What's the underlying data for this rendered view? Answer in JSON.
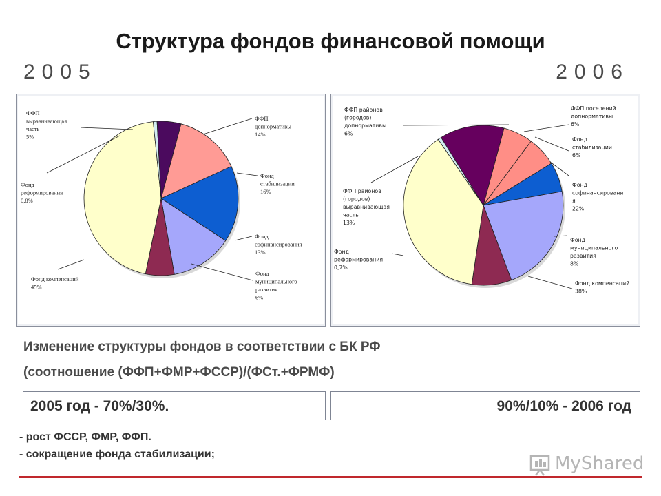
{
  "title": "Структура фондов финансовой помощи",
  "years": {
    "left": "2005",
    "right": "2006"
  },
  "chart_data": [
    {
      "type": "pie",
      "year": "2005",
      "slices": [
        {
          "label_lines": [
            "ФФП",
            "допнормативы",
            "14%"
          ],
          "value": 14,
          "color": "#ff9b95"
        },
        {
          "label_lines": [
            "Фонд",
            "стабилизации",
            "16%"
          ],
          "value": 16,
          "color": "#0d5ed1"
        },
        {
          "label_lines": [
            "Фонд",
            "софинансирования",
            "13%"
          ],
          "value": 13,
          "color": "#a5a7fb"
        },
        {
          "label_lines": [
            "Фонд",
            "муниципального",
            "развития",
            "6%"
          ],
          "value": 6,
          "color": "#8e2a52"
        },
        {
          "label_lines": [
            "Фонд компенсаций",
            "45%"
          ],
          "value": 45,
          "color": "#ffffcb"
        },
        {
          "label_lines": [
            "Фонд",
            "реформирования",
            "0,8%"
          ],
          "value": 0.8,
          "color": "#d3ecf2"
        },
        {
          "label_lines": [
            "ФФП",
            "выравнивающая",
            "часть",
            "5%"
          ],
          "value": 5,
          "color": "#4b0a5e"
        }
      ]
    },
    {
      "type": "pie",
      "year": "2006",
      "slices": [
        {
          "label_lines": [
            "ФФП районов",
            "(городов)",
            "допнормативы",
            "6%"
          ],
          "value": 6,
          "color": "#ff8e86"
        },
        {
          "label_lines": [
            "ФФП поселений",
            "допнормативы",
            "6%"
          ],
          "value": 6,
          "color": "#ff8e86"
        },
        {
          "label_lines": [
            "Фонд",
            "стабилизации",
            "6%"
          ],
          "value": 6,
          "color": "#0d5ed1"
        },
        {
          "label_lines": [
            "Фонд",
            "софинансировани",
            "я",
            "22%"
          ],
          "value": 22,
          "color": "#a5a7fb"
        },
        {
          "label_lines": [
            "Фонд",
            "муниципального",
            "развития",
            "8%"
          ],
          "value": 8,
          "color": "#8e2a52"
        },
        {
          "label_lines": [
            "Фонд компенсаций",
            "38%"
          ],
          "value": 38,
          "color": "#ffffcb"
        },
        {
          "label_lines": [
            "Фонд",
            "реформирования",
            "0,7%"
          ],
          "value": 0.7,
          "color": "#d3ecf2"
        },
        {
          "label_lines": [
            "ФФП районов",
            "(городов)",
            "выравнивающая",
            "часть",
            "13%"
          ],
          "value": 13,
          "color": "#66005e"
        }
      ]
    }
  ],
  "caption_line1": "Изменение структуры фондов в соответствии с БК РФ",
  "caption_line2": "(соотношение (ФФП+ФМР+ФССР)/(ФСт.+ФРМФ)",
  "ratio_left": "2005 год - 70%/30%.",
  "ratio_right": "90%/10% - 2006 год",
  "notes": [
    "- рост ФССР, ФМР, ФФП.",
    "- сокращение фонда стабилизации;"
  ],
  "logo_text": "MyShared"
}
